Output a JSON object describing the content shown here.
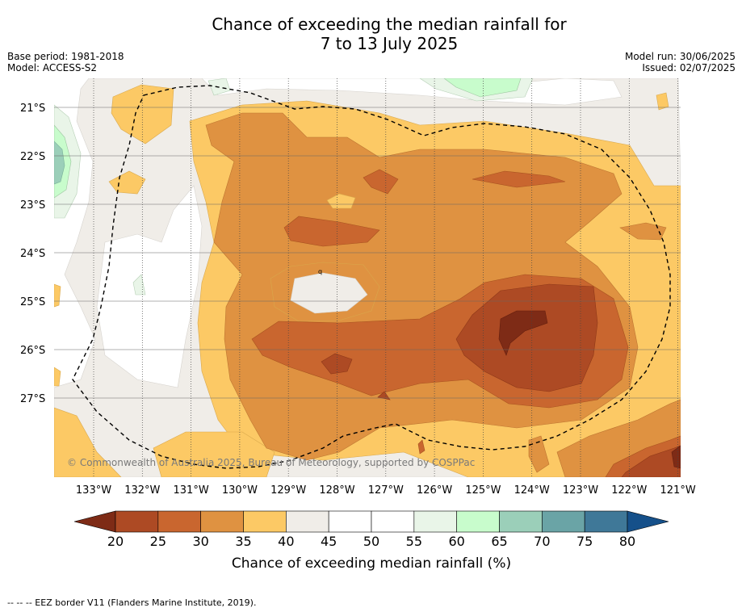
{
  "header": {
    "title_line1": "Chance of exceeding the median rainfall for",
    "title_line2": "7 to 13 July 2025",
    "base_period": "Base period: 1981-2018",
    "model": "Model: ACCESS-S2",
    "model_run": "Model run: 30/06/2025",
    "issued": "Issued: 02/07/2025"
  },
  "map": {
    "copyright": "© Commonwealth of Australia 2025, Bureau of Meteorology, supported by COSPPac",
    "lon_labels": [
      "133°W",
      "132°W",
      "131°W",
      "130°W",
      "129°W",
      "128°W",
      "127°W",
      "126°W",
      "125°W",
      "124°W",
      "123°W",
      "122°W",
      "121°W"
    ],
    "lat_labels": [
      "21°S",
      "22°S",
      "23°S",
      "24°S",
      "25°S",
      "26°S",
      "27°S"
    ],
    "stray_label": "q"
  },
  "colorbar": {
    "ticks": [
      "20",
      "25",
      "30",
      "35",
      "40",
      "45",
      "50",
      "55",
      "60",
      "65",
      "70",
      "75",
      "80"
    ],
    "colors": [
      "#7e2b16",
      "#ad4a24",
      "#c9662f",
      "#df9241",
      "#fcc965",
      "#f0ede8",
      "#ffffff",
      "#ffffff",
      "#e9f5e8",
      "#c8fccc",
      "#9bcfb9",
      "#6aa4a6",
      "#3f7898",
      "#15508a"
    ],
    "label": "Chance of exceeding median rainfall (%)"
  },
  "footer": {
    "legend_text": "--  --  -- EEZ border V11 (Flanders Marine Institute, 2019)."
  }
}
